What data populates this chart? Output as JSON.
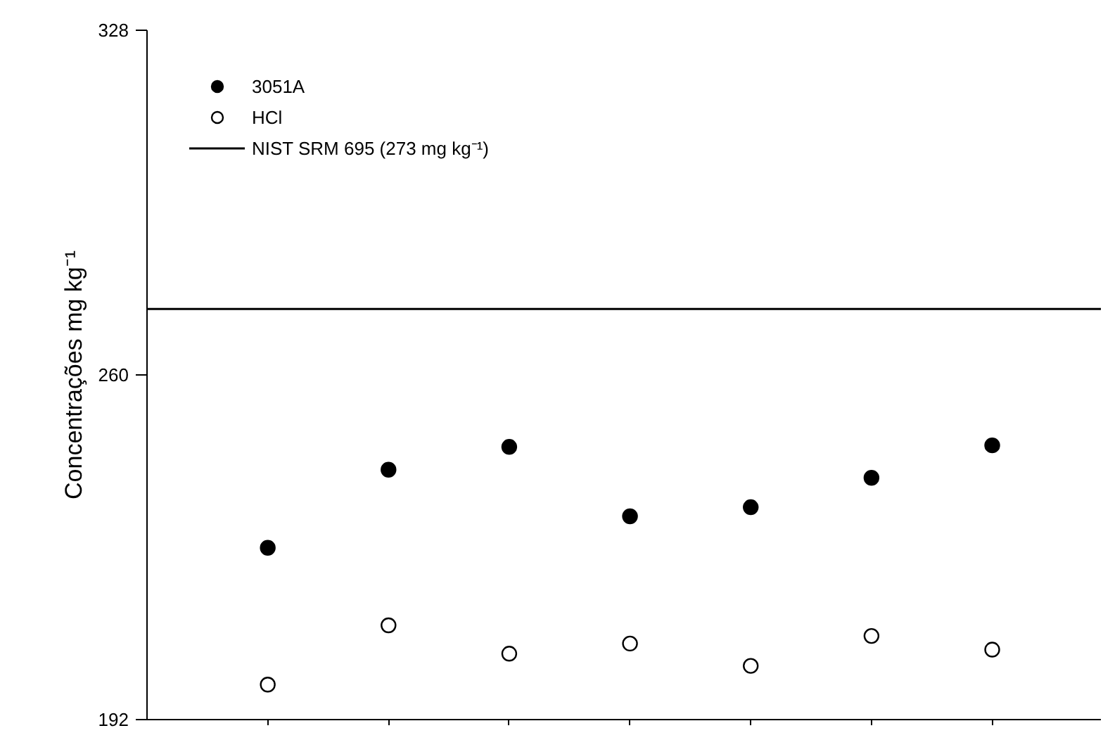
{
  "chart_data": {
    "type": "scatter",
    "ylabel": "Concentrações mg kg⁻¹",
    "categories": [
      null,
      null,
      null,
      null,
      null,
      null,
      null
    ],
    "ylim": [
      192,
      328
    ],
    "yticks": [
      192,
      260,
      328
    ],
    "series": [
      {
        "name": "3051A",
        "color": "#000000",
        "marker": "circle",
        "values": [
          225.9,
          241.3,
          245.8,
          232.1,
          233.9,
          239.7,
          246.1
        ]
      },
      {
        "name": "HCl",
        "color": "#ffffff",
        "marker": "circle",
        "values": [
          198.9,
          210.6,
          205.0,
          207.0,
          202.6,
          208.5,
          205.8
        ]
      }
    ],
    "ref_lines": [
      {
        "axis": "y",
        "value": 273,
        "label": "NIST SRM 695 (273 mg kg⁻¹)",
        "color": "#000000"
      }
    ],
    "legend": "top left",
    "grid": false,
    "tick_labels": "y"
  }
}
